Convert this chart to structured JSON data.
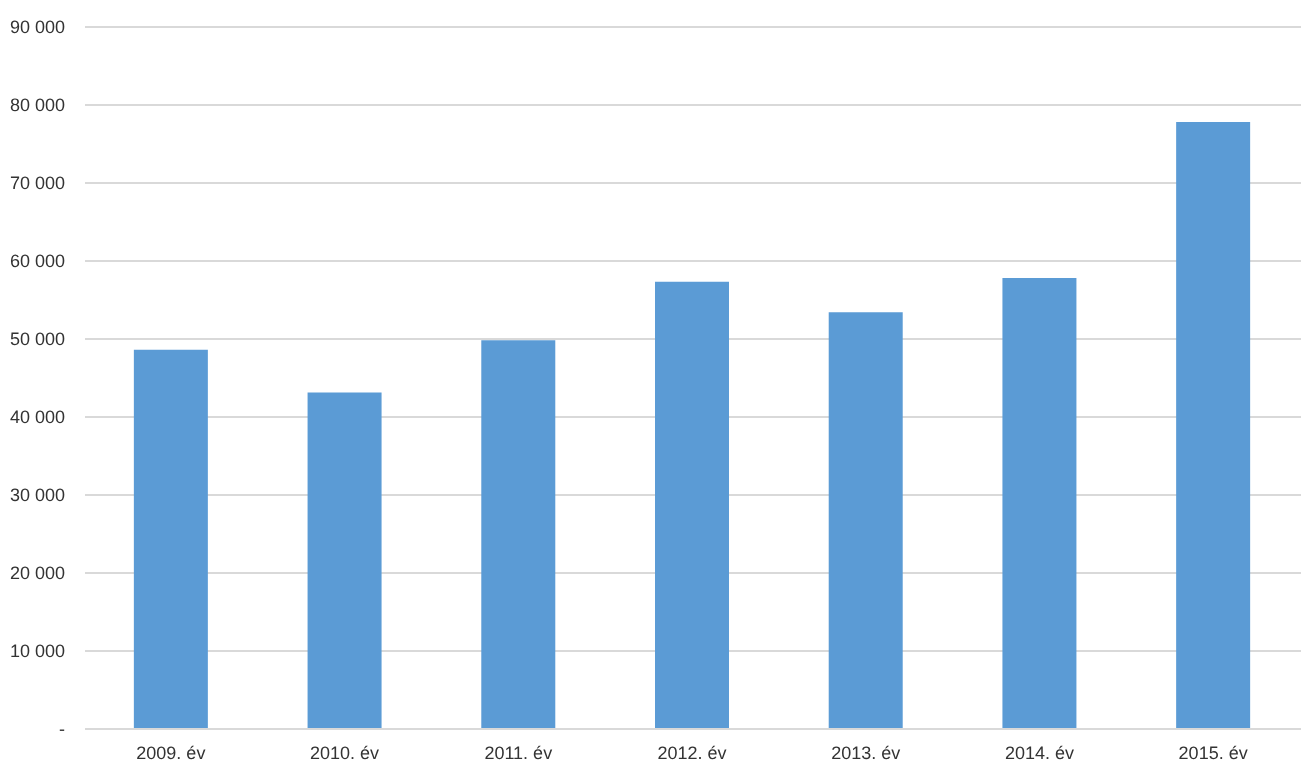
{
  "chart_data": {
    "type": "bar",
    "categories": [
      "2009. év",
      "2010. év",
      "2011. év",
      "2012. év",
      "2013. év",
      "2014. év",
      "2015. év"
    ],
    "values": [
      48500,
      43000,
      49700,
      57200,
      53300,
      57700,
      77700
    ],
    "color": "#5b9bd5",
    "ylim": [
      0,
      90000
    ],
    "yticks": [
      {
        "value": 0,
        "label": "-"
      },
      {
        "value": 10000,
        "label": "10 000"
      },
      {
        "value": 20000,
        "label": "20 000"
      },
      {
        "value": 30000,
        "label": "30 000"
      },
      {
        "value": 40000,
        "label": "40 000"
      },
      {
        "value": 50000,
        "label": "50 000"
      },
      {
        "value": 60000,
        "label": "60 000"
      },
      {
        "value": 70000,
        "label": "70 000"
      },
      {
        "value": 80000,
        "label": "80 000"
      },
      {
        "value": 90000,
        "label": "90 000"
      }
    ],
    "grid": "y"
  }
}
